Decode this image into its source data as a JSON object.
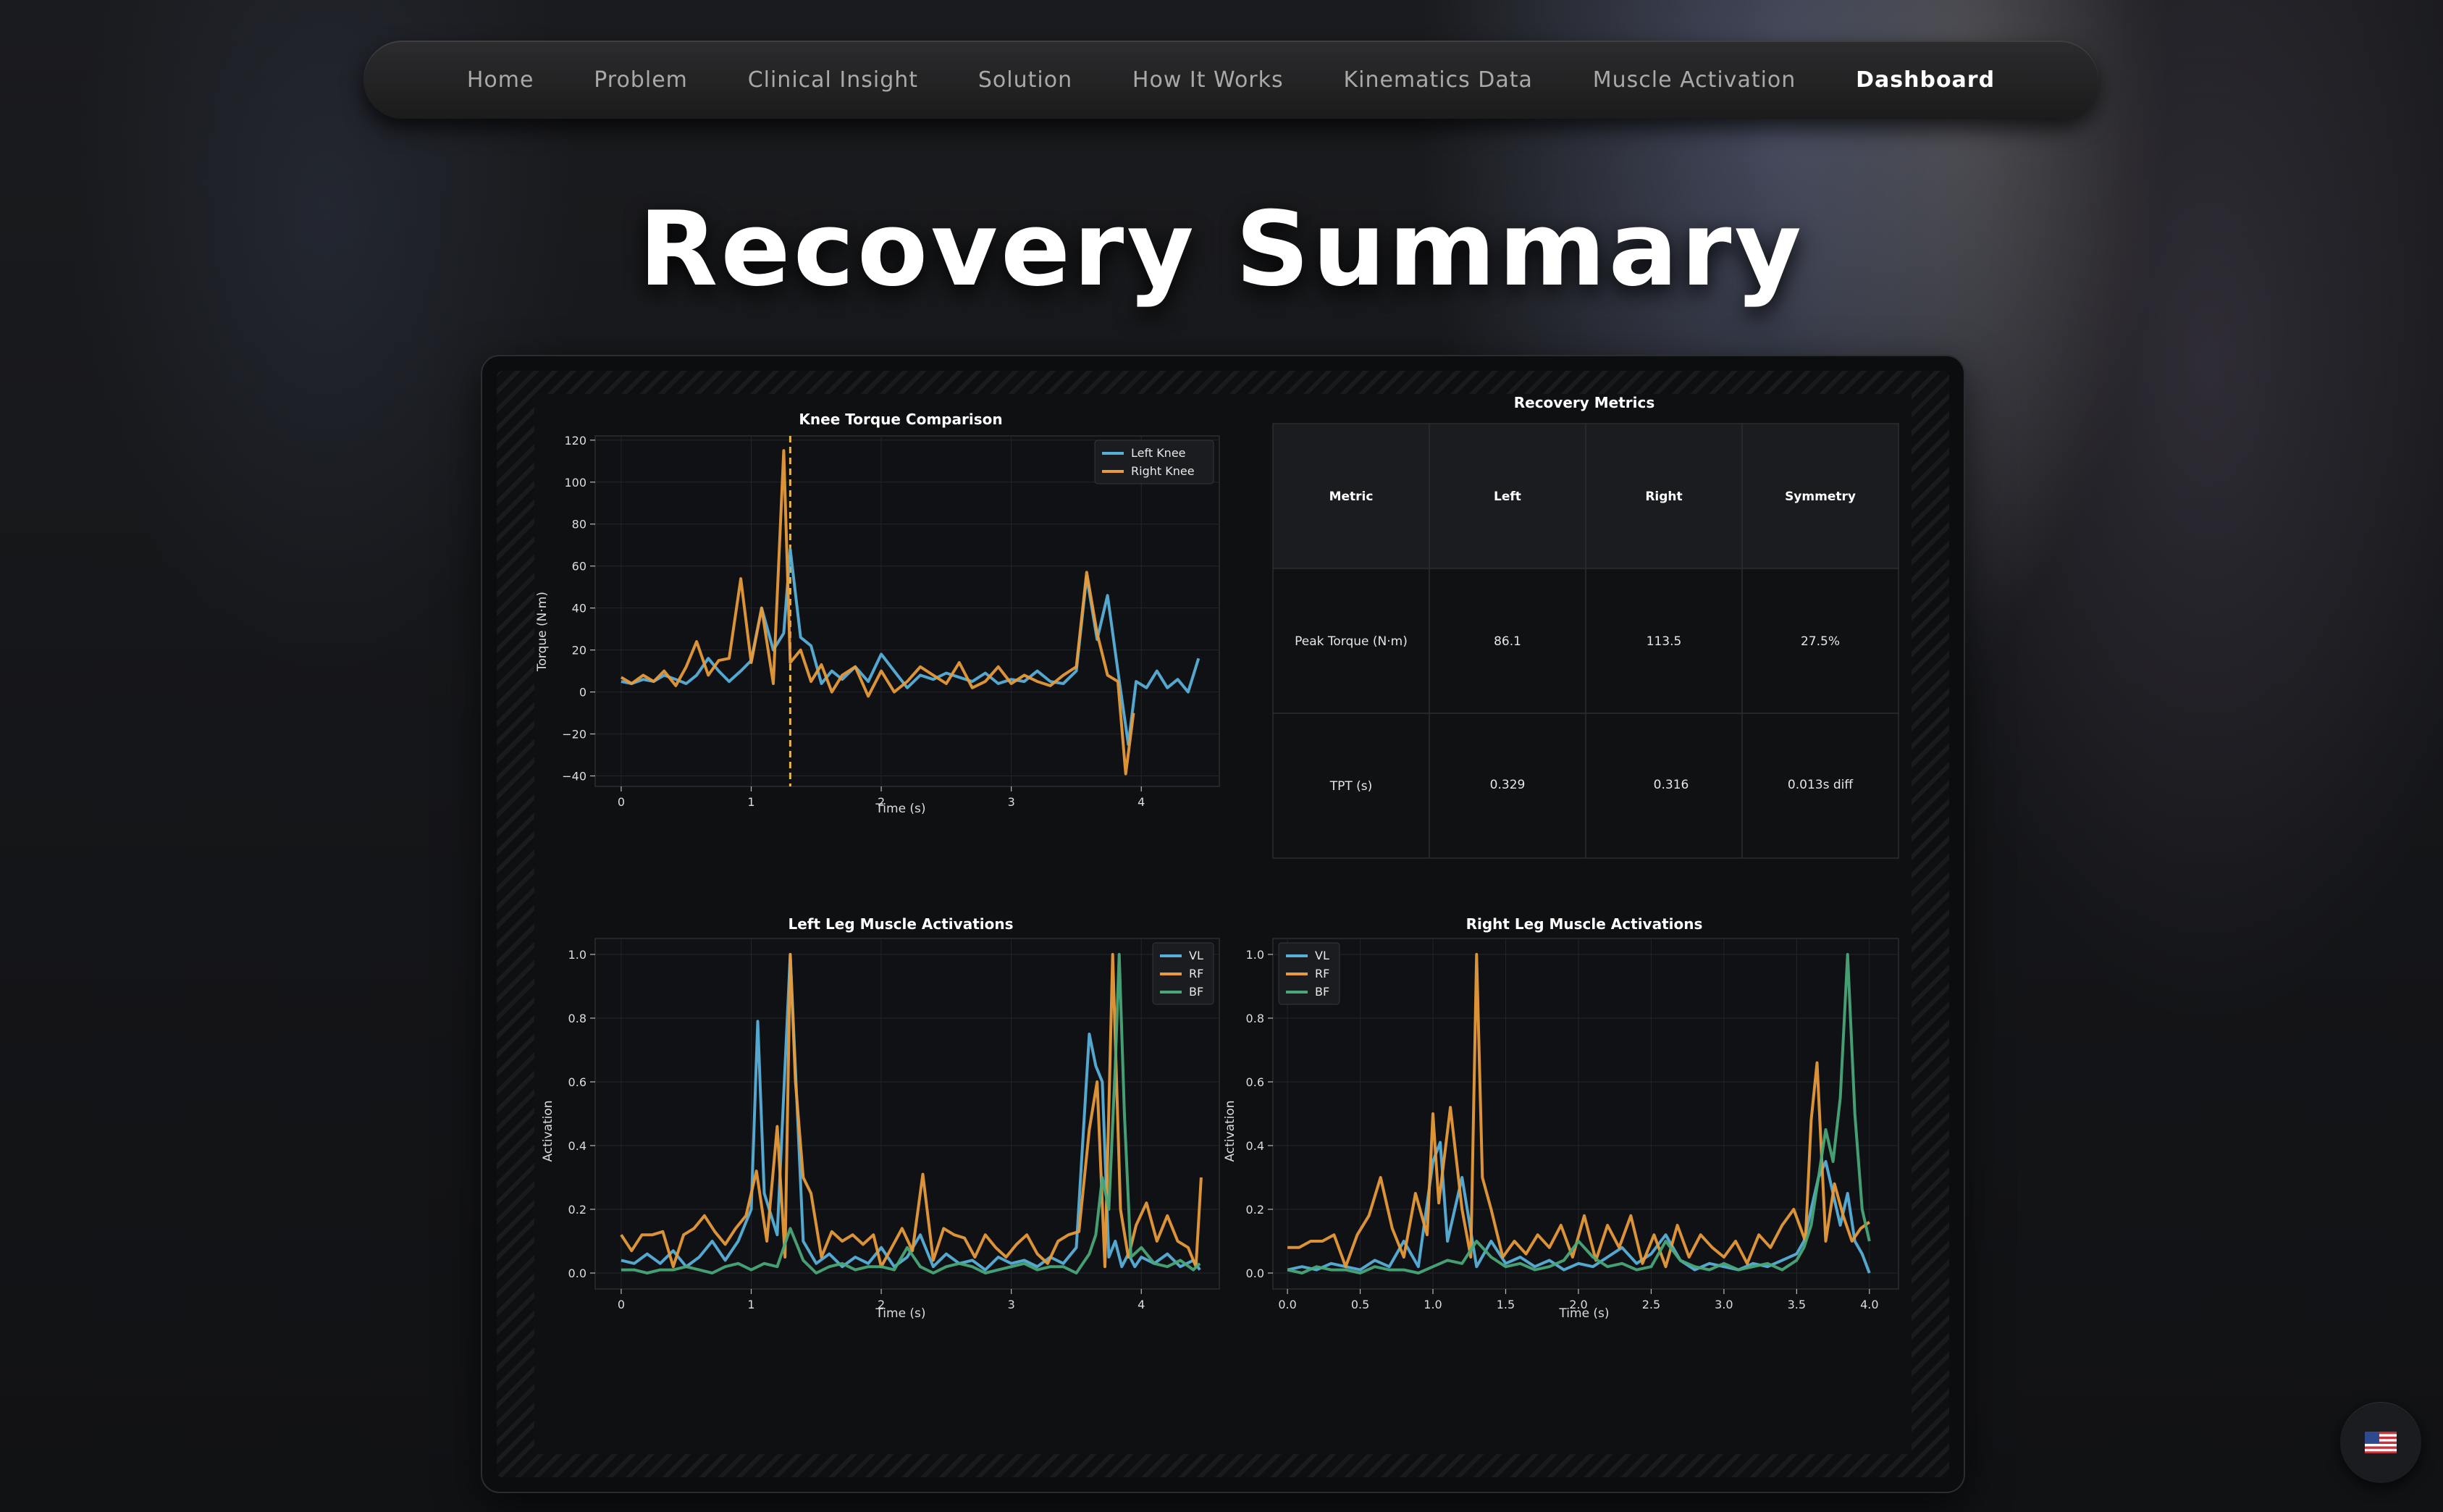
{
  "nav": {
    "items": [
      {
        "label": "Home",
        "active": false
      },
      {
        "label": "Problem",
        "active": false
      },
      {
        "label": "Clinical Insight",
        "active": false
      },
      {
        "label": "Solution",
        "active": false
      },
      {
        "label": "How It Works",
        "active": false
      },
      {
        "label": "Kinematics Data",
        "active": false
      },
      {
        "label": "Muscle Activation",
        "active": false
      },
      {
        "label": "Dashboard",
        "active": true
      }
    ]
  },
  "page": {
    "title": "Recovery Summary"
  },
  "colors": {
    "blue": "#58b0d8",
    "orange": "#e89b3a",
    "green": "#4aa878",
    "background": "#0f1012"
  },
  "language": {
    "icon": "us-flag-icon"
  },
  "chart_data": [
    {
      "type": "line",
      "title": "Knee Torque Comparison",
      "xlabel": "Time (s)",
      "ylabel": "Torque (N·m)",
      "xlim": [
        -0.2,
        4.6
      ],
      "ylim": [
        -45,
        122
      ],
      "xticks": [
        0,
        1,
        2,
        3,
        4
      ],
      "yticks": [
        -40,
        -20,
        0,
        20,
        40,
        60,
        80,
        100,
        120
      ],
      "grid": true,
      "legend": "top-right",
      "vline_x": 1.3,
      "series": [
        {
          "name": "Left Knee",
          "color": "#58b0d8",
          "x": [
            0.0,
            0.08,
            0.17,
            0.25,
            0.33,
            0.42,
            0.5,
            0.58,
            0.67,
            0.75,
            0.83,
            0.92,
            1.0,
            1.08,
            1.17,
            1.25,
            1.3,
            1.38,
            1.46,
            1.54,
            1.62,
            1.7,
            1.8,
            1.9,
            2.0,
            2.1,
            2.2,
            2.3,
            2.4,
            2.5,
            2.6,
            2.7,
            2.8,
            2.9,
            3.0,
            3.1,
            3.2,
            3.3,
            3.4,
            3.5,
            3.58,
            3.66,
            3.74,
            3.82,
            3.9,
            3.96,
            4.04,
            4.12,
            4.2,
            4.28,
            4.36,
            4.44
          ],
          "y": [
            5,
            4,
            6,
            5,
            8,
            6,
            4,
            8,
            16,
            10,
            5,
            10,
            15,
            40,
            20,
            28,
            68,
            26,
            22,
            4,
            10,
            6,
            12,
            5,
            18,
            10,
            2,
            8,
            6,
            9,
            7,
            5,
            9,
            4,
            6,
            5,
            10,
            5,
            4,
            10,
            55,
            25,
            46,
            10,
            -25,
            5,
            2,
            10,
            2,
            6,
            0,
            16
          ]
        },
        {
          "name": "Right Knee",
          "color": "#e89b3a",
          "x": [
            0.0,
            0.08,
            0.17,
            0.25,
            0.33,
            0.42,
            0.5,
            0.58,
            0.67,
            0.75,
            0.83,
            0.92,
            1.0,
            1.08,
            1.17,
            1.25,
            1.3,
            1.38,
            1.46,
            1.54,
            1.62,
            1.7,
            1.8,
            1.9,
            2.0,
            2.1,
            2.2,
            2.3,
            2.4,
            2.5,
            2.6,
            2.7,
            2.8,
            2.9,
            3.0,
            3.1,
            3.2,
            3.3,
            3.4,
            3.5,
            3.58,
            3.66,
            3.74,
            3.82,
            3.88,
            3.94
          ],
          "y": [
            7,
            4,
            8,
            5,
            10,
            3,
            12,
            24,
            8,
            15,
            16,
            54,
            14,
            40,
            4,
            115,
            14,
            20,
            5,
            13,
            0,
            8,
            12,
            -2,
            10,
            0,
            5,
            12,
            8,
            4,
            14,
            2,
            5,
            12,
            4,
            8,
            5,
            3,
            8,
            12,
            57,
            28,
            8,
            5,
            -39,
            -10
          ]
        }
      ]
    },
    {
      "type": "table",
      "title": "Recovery Metrics",
      "columns": [
        "Metric",
        "Left",
        "Right",
        "Symmetry"
      ],
      "rows": [
        [
          "Peak Torque (N·m)",
          "86.1",
          "113.5",
          "27.5%"
        ],
        [
          "TPT (s)",
          "0.329",
          "0.316",
          "0.013s diff"
        ]
      ]
    },
    {
      "type": "line",
      "title": "Left Leg Muscle Activations",
      "xlabel": "Time (s)",
      "ylabel": "Activation",
      "xlim": [
        -0.2,
        4.6
      ],
      "ylim": [
        -0.05,
        1.05
      ],
      "xticks": [
        0,
        1,
        2,
        3,
        4
      ],
      "yticks": [
        0.0,
        0.2,
        0.4,
        0.6,
        0.8,
        1.0
      ],
      "grid": true,
      "legend": "top-right",
      "series": [
        {
          "name": "VL",
          "color": "#58b0d8",
          "x": [
            0.0,
            0.1,
            0.2,
            0.3,
            0.4,
            0.5,
            0.6,
            0.7,
            0.8,
            0.9,
            1.0,
            1.05,
            1.1,
            1.2,
            1.3,
            1.4,
            1.5,
            1.6,
            1.7,
            1.8,
            1.9,
            2.0,
            2.1,
            2.2,
            2.3,
            2.4,
            2.5,
            2.6,
            2.7,
            2.8,
            2.9,
            3.0,
            3.1,
            3.2,
            3.3,
            3.4,
            3.5,
            3.6,
            3.65,
            3.7,
            3.75,
            3.8,
            3.85,
            3.9,
            3.95,
            4.0,
            4.1,
            4.2,
            4.3,
            4.4,
            4.45
          ],
          "y": [
            0.04,
            0.03,
            0.06,
            0.03,
            0.07,
            0.02,
            0.05,
            0.1,
            0.04,
            0.1,
            0.2,
            0.79,
            0.25,
            0.12,
            1.0,
            0.1,
            0.03,
            0.06,
            0.02,
            0.05,
            0.03,
            0.08,
            0.02,
            0.05,
            0.12,
            0.02,
            0.06,
            0.03,
            0.04,
            0.01,
            0.05,
            0.03,
            0.04,
            0.02,
            0.05,
            0.03,
            0.08,
            0.75,
            0.65,
            0.6,
            0.05,
            0.1,
            0.02,
            0.06,
            0.02,
            0.05,
            0.03,
            0.06,
            0.02,
            0.04,
            0.01
          ]
        },
        {
          "name": "RF",
          "color": "#e89b3a",
          "x": [
            0.0,
            0.08,
            0.16,
            0.24,
            0.32,
            0.4,
            0.48,
            0.56,
            0.64,
            0.72,
            0.8,
            0.88,
            0.96,
            1.04,
            1.12,
            1.2,
            1.26,
            1.3,
            1.34,
            1.4,
            1.46,
            1.54,
            1.62,
            1.7,
            1.78,
            1.86,
            1.94,
            2.0,
            2.08,
            2.16,
            2.24,
            2.32,
            2.4,
            2.48,
            2.56,
            2.64,
            2.72,
            2.8,
            2.88,
            2.96,
            3.04,
            3.12,
            3.2,
            3.28,
            3.36,
            3.44,
            3.52,
            3.6,
            3.66,
            3.72,
            3.78,
            3.84,
            3.9,
            3.96,
            4.04,
            4.12,
            4.2,
            4.28,
            4.36,
            4.42,
            4.46
          ],
          "y": [
            0.12,
            0.07,
            0.12,
            0.12,
            0.13,
            0.02,
            0.12,
            0.14,
            0.18,
            0.13,
            0.09,
            0.14,
            0.18,
            0.32,
            0.1,
            0.46,
            0.05,
            1.0,
            0.6,
            0.3,
            0.25,
            0.05,
            0.13,
            0.1,
            0.12,
            0.09,
            0.12,
            0.02,
            0.08,
            0.14,
            0.07,
            0.31,
            0.04,
            0.14,
            0.12,
            0.11,
            0.05,
            0.12,
            0.08,
            0.05,
            0.09,
            0.12,
            0.06,
            0.03,
            0.1,
            0.12,
            0.13,
            0.45,
            0.6,
            0.02,
            1.0,
            0.2,
            0.05,
            0.15,
            0.22,
            0.1,
            0.18,
            0.1,
            0.08,
            0.02,
            0.3
          ]
        },
        {
          "name": "BF",
          "color": "#4aa878",
          "x": [
            0.0,
            0.1,
            0.2,
            0.3,
            0.4,
            0.5,
            0.6,
            0.7,
            0.8,
            0.9,
            1.0,
            1.1,
            1.2,
            1.3,
            1.4,
            1.5,
            1.6,
            1.7,
            1.8,
            1.9,
            2.0,
            2.1,
            2.2,
            2.3,
            2.4,
            2.5,
            2.6,
            2.7,
            2.8,
            2.9,
            3.0,
            3.1,
            3.2,
            3.3,
            3.4,
            3.5,
            3.6,
            3.65,
            3.7,
            3.75,
            3.8,
            3.83,
            3.87,
            3.92,
            4.0,
            4.1,
            4.2,
            4.3,
            4.4,
            4.45
          ],
          "y": [
            0.01,
            0.01,
            0.0,
            0.01,
            0.01,
            0.02,
            0.01,
            0.0,
            0.02,
            0.03,
            0.01,
            0.03,
            0.02,
            0.14,
            0.04,
            0.0,
            0.02,
            0.03,
            0.01,
            0.02,
            0.02,
            0.01,
            0.08,
            0.02,
            0.0,
            0.02,
            0.03,
            0.02,
            0.0,
            0.01,
            0.02,
            0.03,
            0.01,
            0.02,
            0.02,
            0.0,
            0.06,
            0.12,
            0.3,
            0.2,
            0.65,
            1.0,
            0.5,
            0.05,
            0.08,
            0.03,
            0.02,
            0.04,
            0.01,
            0.03
          ]
        }
      ]
    },
    {
      "type": "line",
      "title": "Right Leg Muscle Activations",
      "xlabel": "Time (s)",
      "ylabel": "Activation",
      "xlim": [
        -0.1,
        4.2
      ],
      "ylim": [
        -0.05,
        1.05
      ],
      "xticks": [
        0.0,
        0.5,
        1.0,
        1.5,
        2.0,
        2.5,
        3.0,
        3.5,
        4.0
      ],
      "yticks": [
        0.0,
        0.2,
        0.4,
        0.6,
        0.8,
        1.0
      ],
      "grid": true,
      "legend": "top-left",
      "series": [
        {
          "name": "VL",
          "color": "#58b0d8",
          "x": [
            0.0,
            0.1,
            0.2,
            0.3,
            0.4,
            0.5,
            0.6,
            0.7,
            0.8,
            0.9,
            1.0,
            1.05,
            1.1,
            1.2,
            1.3,
            1.4,
            1.5,
            1.6,
            1.7,
            1.8,
            1.9,
            2.0,
            2.1,
            2.2,
            2.3,
            2.4,
            2.5,
            2.6,
            2.7,
            2.8,
            2.9,
            3.0,
            3.1,
            3.2,
            3.3,
            3.4,
            3.5,
            3.55,
            3.6,
            3.65,
            3.7,
            3.75,
            3.8,
            3.85,
            3.9,
            3.95,
            4.0
          ],
          "y": [
            0.01,
            0.02,
            0.01,
            0.03,
            0.02,
            0.01,
            0.04,
            0.02,
            0.1,
            0.02,
            0.35,
            0.41,
            0.1,
            0.3,
            0.02,
            0.1,
            0.03,
            0.05,
            0.02,
            0.04,
            0.01,
            0.03,
            0.02,
            0.05,
            0.08,
            0.03,
            0.06,
            0.12,
            0.04,
            0.01,
            0.03,
            0.02,
            0.01,
            0.03,
            0.02,
            0.04,
            0.06,
            0.1,
            0.2,
            0.3,
            0.35,
            0.25,
            0.15,
            0.25,
            0.1,
            0.06,
            0.0
          ]
        },
        {
          "name": "RF",
          "color": "#e89b3a",
          "x": [
            0.0,
            0.08,
            0.16,
            0.24,
            0.32,
            0.4,
            0.48,
            0.56,
            0.64,
            0.72,
            0.8,
            0.88,
            0.96,
            1.0,
            1.04,
            1.12,
            1.2,
            1.26,
            1.3,
            1.34,
            1.4,
            1.48,
            1.56,
            1.64,
            1.72,
            1.8,
            1.88,
            1.96,
            2.04,
            2.12,
            2.2,
            2.28,
            2.36,
            2.44,
            2.52,
            2.6,
            2.68,
            2.76,
            2.84,
            2.92,
            3.0,
            3.08,
            3.16,
            3.24,
            3.32,
            3.4,
            3.48,
            3.56,
            3.6,
            3.64,
            3.7,
            3.76,
            3.82,
            3.88,
            3.94,
            4.0
          ],
          "y": [
            0.08,
            0.08,
            0.1,
            0.1,
            0.12,
            0.02,
            0.12,
            0.18,
            0.3,
            0.14,
            0.05,
            0.25,
            0.12,
            0.5,
            0.22,
            0.52,
            0.2,
            0.05,
            1.0,
            0.3,
            0.2,
            0.05,
            0.1,
            0.06,
            0.12,
            0.08,
            0.15,
            0.05,
            0.18,
            0.04,
            0.15,
            0.08,
            0.18,
            0.03,
            0.12,
            0.02,
            0.15,
            0.05,
            0.12,
            0.08,
            0.05,
            0.1,
            0.03,
            0.12,
            0.08,
            0.15,
            0.2,
            0.1,
            0.48,
            0.66,
            0.1,
            0.28,
            0.18,
            0.1,
            0.14,
            0.16
          ]
        },
        {
          "name": "BF",
          "color": "#4aa878",
          "x": [
            0.0,
            0.1,
            0.2,
            0.3,
            0.4,
            0.5,
            0.6,
            0.7,
            0.8,
            0.9,
            1.0,
            1.1,
            1.2,
            1.3,
            1.4,
            1.5,
            1.6,
            1.7,
            1.8,
            1.9,
            2.0,
            2.1,
            2.2,
            2.3,
            2.4,
            2.5,
            2.6,
            2.7,
            2.8,
            2.9,
            3.0,
            3.1,
            3.2,
            3.3,
            3.4,
            3.5,
            3.55,
            3.6,
            3.65,
            3.7,
            3.75,
            3.8,
            3.85,
            3.9,
            3.95,
            4.0
          ],
          "y": [
            0.01,
            0.0,
            0.02,
            0.01,
            0.01,
            0.0,
            0.02,
            0.01,
            0.01,
            0.0,
            0.02,
            0.04,
            0.03,
            0.1,
            0.05,
            0.02,
            0.03,
            0.01,
            0.02,
            0.04,
            0.1,
            0.05,
            0.02,
            0.03,
            0.01,
            0.02,
            0.1,
            0.04,
            0.02,
            0.01,
            0.03,
            0.01,
            0.02,
            0.03,
            0.01,
            0.04,
            0.08,
            0.15,
            0.3,
            0.45,
            0.35,
            0.55,
            1.0,
            0.5,
            0.2,
            0.1
          ]
        }
      ]
    }
  ]
}
